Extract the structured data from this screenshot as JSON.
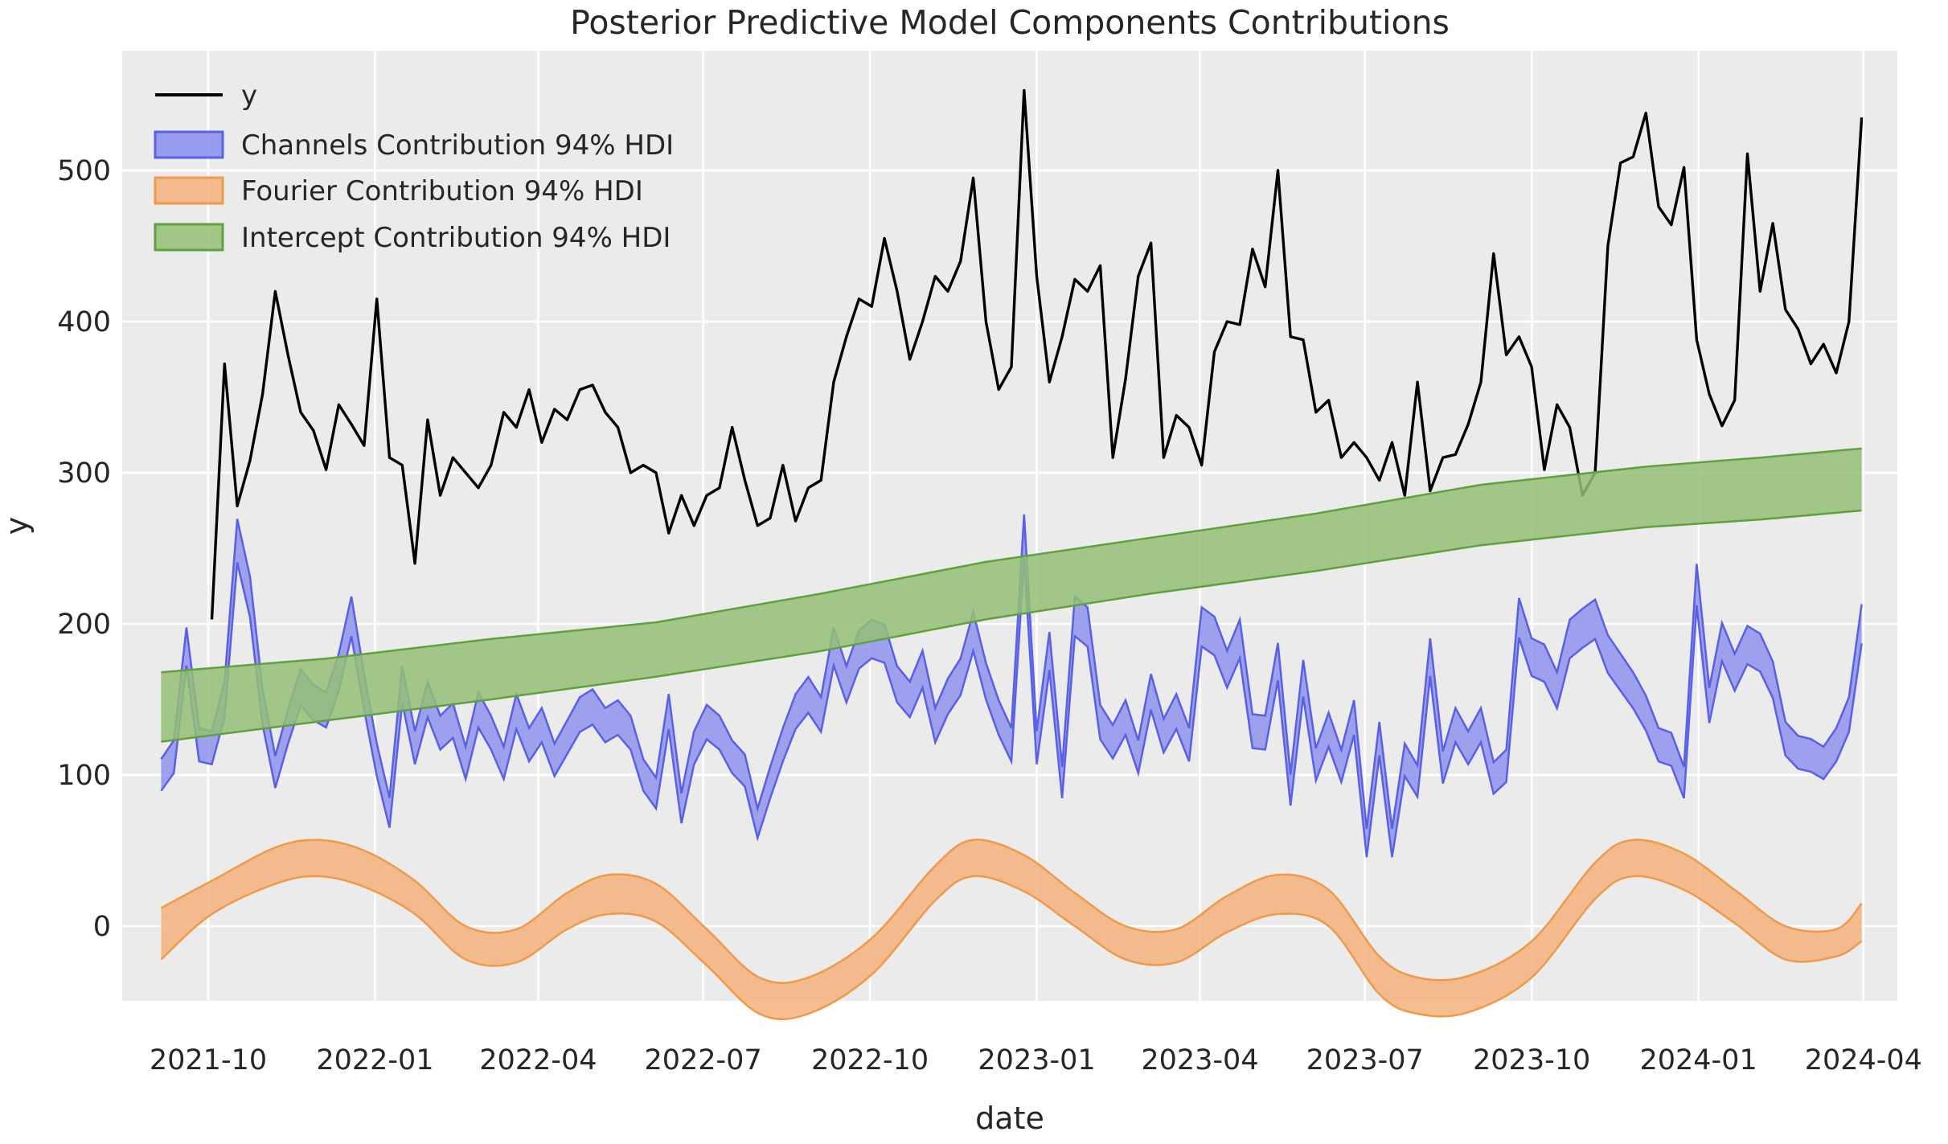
{
  "title": "Posterior Predictive Model Components Contributions",
  "axes": {
    "xlabel": "date",
    "ylabel": "y",
    "plot_bg_color": "#ebebeb",
    "grid_color": "#ffffff",
    "text_color": "#262626",
    "x_ticks": [
      {
        "label": "2021-10",
        "date": "2021-10-01"
      },
      {
        "label": "2022-01",
        "date": "2022-01-01"
      },
      {
        "label": "2022-04",
        "date": "2022-04-01"
      },
      {
        "label": "2022-07",
        "date": "2022-07-01"
      },
      {
        "label": "2022-10",
        "date": "2022-10-01"
      },
      {
        "label": "2023-01",
        "date": "2023-01-01"
      },
      {
        "label": "2023-04",
        "date": "2023-04-01"
      },
      {
        "label": "2023-07",
        "date": "2023-07-01"
      },
      {
        "label": "2023-10",
        "date": "2023-10-01"
      },
      {
        "label": "2024-01",
        "date": "2024-01-01"
      },
      {
        "label": "2024-04",
        "date": "2024-04-01"
      }
    ],
    "y_ticks": [
      0,
      100,
      200,
      300,
      400,
      500
    ]
  },
  "legend": [
    {
      "label": "y",
      "swatch": "line",
      "color": "#000000"
    },
    {
      "label": "Channels Contribution 94% HDI",
      "swatch": "patch",
      "fill": "#888dee",
      "edge": "#5a60e3"
    },
    {
      "label": "Fourier Contribution 94% HDI",
      "swatch": "patch",
      "fill": "#f5b17c",
      "edge": "#ee9a49"
    },
    {
      "label": "Intercept Contribution 94% HDI",
      "swatch": "patch",
      "fill": "#94c075",
      "edge": "#61a03f"
    }
  ],
  "chart_data": {
    "type": "line",
    "x_start": "2021-09-05",
    "x_step_days": 7,
    "n_weeks": 135,
    "ylim_visible": [
      -49,
      579
    ],
    "series": [
      {
        "name": "y",
        "kind": "line",
        "color": "#000000",
        "start_index": 4,
        "values": [
          203,
          372,
          278,
          308,
          352,
          420,
          378,
          340,
          328,
          302,
          345,
          332,
          318,
          415,
          310,
          305,
          240,
          335,
          285,
          310,
          300,
          290,
          305,
          340,
          330,
          355,
          320,
          342,
          335,
          355,
          358,
          340,
          330,
          300,
          305,
          300,
          260,
          285,
          265,
          285,
          290,
          330,
          295,
          265,
          270,
          305,
          268,
          290,
          295,
          360,
          390,
          415,
          410,
          455,
          420,
          375,
          400,
          430,
          420,
          440,
          495,
          400,
          355,
          370,
          553,
          430,
          360,
          390,
          428,
          420,
          437,
          310,
          362,
          430,
          452,
          310,
          338,
          330,
          305,
          380,
          400,
          398,
          448,
          423,
          500,
          390,
          388,
          340,
          348,
          310,
          320,
          310,
          295,
          320,
          285,
          360,
          288,
          310,
          312,
          332,
          360,
          445,
          378,
          390,
          370,
          302,
          345,
          330,
          285,
          300,
          450,
          505,
          509,
          538,
          476,
          464,
          502,
          388,
          352,
          331,
          348,
          511,
          420,
          465,
          408,
          395,
          372,
          385,
          366,
          400,
          535
        ]
      },
      {
        "name": "Channels Contribution 94% HDI",
        "kind": "band_weekly",
        "fill": "#888dee",
        "edge": "#5a60e3",
        "start_index": 0,
        "center": [
          100,
          112,
          185,
          120,
          118,
          150,
          255,
          218,
          145,
          102,
          132,
          158,
          148,
          143,
          168,
          205,
          155,
          110,
          75,
          160,
          118,
          150,
          128,
          136,
          108,
          143,
          128,
          108,
          142,
          120,
          133,
          110,
          125,
          140,
          145,
          133,
          138,
          128,
          100,
          88,
          142,
          78,
          118,
          135,
          128,
          112,
          103,
          68,
          95,
          120,
          142,
          153,
          140,
          185,
          160,
          183,
          190,
          187,
          160,
          150,
          170,
          133,
          152,
          165,
          195,
          162,
          138,
          120,
          258,
          118,
          182,
          95,
          205,
          198,
          135,
          122,
          138,
          112,
          155,
          126,
          142,
          120,
          198,
          192,
          170,
          190,
          129,
          128,
          175,
          90,
          164,
          107,
          130,
          106,
          138,
          55,
          124,
          55,
          110,
          96,
          178,
          105,
          133,
          118,
          133,
          98,
          106,
          204,
          178,
          174,
          156,
          190,
          197,
          203,
          180,
          168,
          156,
          141,
          120,
          117,
          95,
          226,
          146,
          188,
          168,
          186,
          181,
          163,
          124,
          115,
          113,
          108,
          120,
          140,
          200
        ],
        "half_width_rule": {
          "base": 8,
          "slope_per_unit": 0.025
        }
      },
      {
        "name": "Fourier Contribution 94% HDI",
        "kind": "band_control_points",
        "smooth": true,
        "fill": "#f5b17c",
        "edge": "#ee9a49",
        "points": [
          {
            "date": "2021-09-05",
            "upper": 12,
            "lower": -22
          },
          {
            "date": "2021-10-03",
            "upper": 30,
            "lower": 8
          },
          {
            "date": "2021-11-07",
            "upper": 52,
            "lower": 28
          },
          {
            "date": "2021-12-01",
            "upper": 57,
            "lower": 33
          },
          {
            "date": "2021-12-26",
            "upper": 50,
            "lower": 26
          },
          {
            "date": "2022-01-23",
            "upper": 30,
            "lower": 8
          },
          {
            "date": "2022-02-20",
            "upper": 0,
            "lower": -22
          },
          {
            "date": "2022-03-20",
            "upper": -2,
            "lower": -24
          },
          {
            "date": "2022-04-17",
            "upper": 22,
            "lower": -2
          },
          {
            "date": "2022-05-10",
            "upper": 34,
            "lower": 8
          },
          {
            "date": "2022-06-05",
            "upper": 28,
            "lower": 3
          },
          {
            "date": "2022-07-03",
            "upper": -2,
            "lower": -26
          },
          {
            "date": "2022-08-01",
            "upper": -34,
            "lower": -58
          },
          {
            "date": "2022-08-28",
            "upper": -34,
            "lower": -58
          },
          {
            "date": "2022-10-02",
            "upper": -8,
            "lower": -32
          },
          {
            "date": "2022-11-06",
            "upper": 40,
            "lower": 17
          },
          {
            "date": "2022-11-27",
            "upper": 57,
            "lower": 33
          },
          {
            "date": "2022-12-25",
            "upper": 47,
            "lower": 23
          },
          {
            "date": "2023-01-22",
            "upper": 22,
            "lower": 0
          },
          {
            "date": "2023-02-19",
            "upper": 0,
            "lower": -22
          },
          {
            "date": "2023-03-19",
            "upper": -2,
            "lower": -24
          },
          {
            "date": "2023-04-16",
            "upper": 20,
            "lower": -4
          },
          {
            "date": "2023-05-14",
            "upper": 34,
            "lower": 8
          },
          {
            "date": "2023-06-11",
            "upper": 24,
            "lower": 0
          },
          {
            "date": "2023-07-09",
            "upper": -20,
            "lower": -45
          },
          {
            "date": "2023-07-30",
            "upper": -34,
            "lower": -58
          },
          {
            "date": "2023-08-27",
            "upper": -33,
            "lower": -57
          },
          {
            "date": "2023-10-01",
            "upper": -10,
            "lower": -34
          },
          {
            "date": "2023-11-05",
            "upper": 42,
            "lower": 18
          },
          {
            "date": "2023-11-26",
            "upper": 57,
            "lower": 33
          },
          {
            "date": "2023-12-24",
            "upper": 48,
            "lower": 24
          },
          {
            "date": "2024-01-21",
            "upper": 24,
            "lower": 2
          },
          {
            "date": "2024-02-18",
            "upper": 0,
            "lower": -22
          },
          {
            "date": "2024-03-17",
            "upper": -2,
            "lower": -20
          },
          {
            "date": "2024-03-31",
            "upper": 15,
            "lower": -10
          }
        ]
      },
      {
        "name": "Intercept Contribution 94% HDI",
        "kind": "band_control_points",
        "smooth": false,
        "fill": "#94c075",
        "edge": "#61a03f",
        "points": [
          {
            "date": "2021-09-05",
            "upper": 168,
            "lower": 122
          },
          {
            "date": "2021-12-05",
            "upper": 177,
            "lower": 136
          },
          {
            "date": "2022-03-06",
            "upper": 190,
            "lower": 150
          },
          {
            "date": "2022-06-05",
            "upper": 201,
            "lower": 165
          },
          {
            "date": "2022-09-04",
            "upper": 220,
            "lower": 182
          },
          {
            "date": "2022-12-04",
            "upper": 241,
            "lower": 203
          },
          {
            "date": "2023-03-05",
            "upper": 257,
            "lower": 220
          },
          {
            "date": "2023-06-04",
            "upper": 273,
            "lower": 235
          },
          {
            "date": "2023-09-03",
            "upper": 292,
            "lower": 252
          },
          {
            "date": "2023-12-03",
            "upper": 304,
            "lower": 264
          },
          {
            "date": "2024-02-04",
            "upper": 310,
            "lower": 269
          },
          {
            "date": "2024-03-31",
            "upper": 316,
            "lower": 275
          }
        ]
      }
    ]
  }
}
